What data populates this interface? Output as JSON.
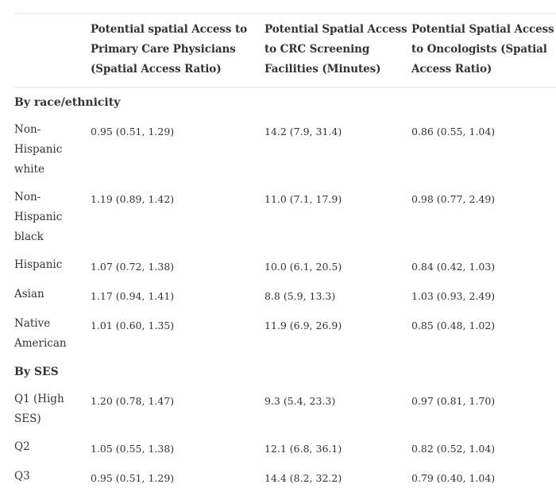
{
  "table": {
    "columns": [
      "",
      "Potential spatial Access to Primary Care Physicians (Spatial Access Ratio)",
      "Potential Spatial Access to CRC Screening Facilities (Minutes)",
      "Potential Spatial Access to Oncologists (Spatial Access Ratio)"
    ],
    "sections": [
      {
        "title": "By race/ethnicity",
        "rows": [
          {
            "label": "Non-Hispanic white",
            "pcp": "0.95 (0.51, 1.29)",
            "crc": "14.2 (7.9, 31.4)",
            "onc": "0.86 (0.55, 1.04)"
          },
          {
            "label": "Non-Hispanic black",
            "pcp": "1.19 (0.89, 1.42)",
            "crc": "11.0 (7.1, 17.9)",
            "onc": "0.98 (0.77, 2.49)"
          },
          {
            "label": "Hispanic",
            "pcp": "1.07 (0.72, 1.38)",
            "crc": "10.0 (6.1, 20.5)",
            "onc": "0.84 (0.42, 1.03)"
          },
          {
            "label": "Asian",
            "pcp": "1.17 (0.94, 1.41)",
            "crc": "8.8 (5.9, 13.3)",
            "onc": "1.03 (0.93, 2.49)"
          },
          {
            "label": "Native American",
            "pcp": "1.01 (0.60, 1.35)",
            "crc": "11.9 (6.9, 26.9)",
            "onc": "0.85 (0.48, 1.02)"
          }
        ]
      },
      {
        "title": "By SES",
        "rows": [
          {
            "label": "Q1 (High SES)",
            "pcp": "1.20 (0.78, 1.47)",
            "crc": "9.3 (5.4, 23.3)",
            "onc": "0.97 (0.81, 1.70)"
          },
          {
            "label": "Q2",
            "pcp": "1.05 (0.55, 1.38)",
            "crc": "12.1 (6.8, 36.1)",
            "onc": "0.82 (0.52, 1.04)"
          },
          {
            "label": "Q3",
            "pcp": "0.95 (0.51, 1.29)",
            "crc": "14.4 (8.2, 32.2)",
            "onc": "0.79 (0.40, 1.04)"
          }
        ]
      }
    ]
  }
}
